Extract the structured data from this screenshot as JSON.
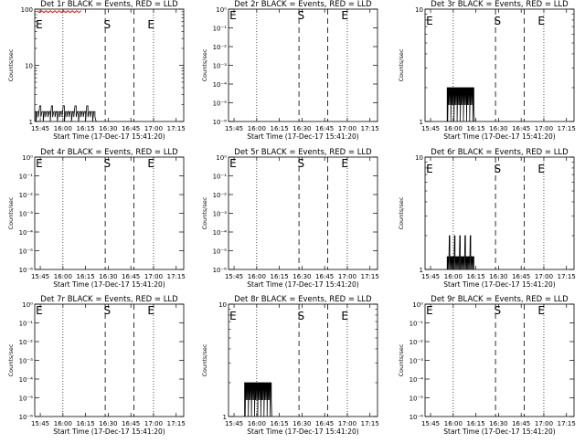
{
  "x_ticks": [
    "15:45",
    "16:00",
    "16:15",
    "16:30",
    "16:45",
    "17:00",
    "17:15"
  ],
  "x_title": "Start Time (17-Dec-17 15:41:20)",
  "y_title": "Counts/sec",
  "colors": {
    "events": "#000000",
    "lld": "#ff0000"
  },
  "chart_data": [
    {
      "type": "line",
      "title": "Det 1r BLACK = Events, RED = LLD",
      "x_range": [
        "15:41:20",
        "17:20"
      ],
      "yscale": "log",
      "ylim": [
        1,
        100
      ],
      "y_ticks": [
        {
          "v": 1,
          "label": "1"
        },
        {
          "v": 10,
          "label": "10"
        },
        {
          "v": 100,
          "label": "100"
        }
      ],
      "dotted_lines": [
        "16:00",
        "17:00"
      ],
      "dashed_lines": [
        "16:28",
        "16:47"
      ],
      "markers": [
        {
          "text": "E",
          "x": "15:42",
          "y": 55
        },
        {
          "text": "S",
          "x": "16:27",
          "y": 55
        },
        {
          "text": "E",
          "x": "16:56",
          "y": 55
        }
      ],
      "events": {
        "x_start": "15:41:30",
        "x_end": "16:22",
        "low": 1.2,
        "high": 1.5,
        "peak": 1.9
      },
      "lld": {
        "x_start": "15:43",
        "x_end": "16:12",
        "y": 92
      }
    },
    {
      "type": "line",
      "title": "Det 2r BLACK = Events, RED = LLD",
      "x_range": [
        "15:41:20",
        "17:20"
      ],
      "yscale": "log",
      "ylim": [
        1e-06,
        1
      ],
      "y_ticks": [
        {
          "v": 1e-06,
          "label": "10⁻⁶"
        },
        {
          "v": 1e-05,
          "label": "10⁻⁵"
        },
        {
          "v": 0.0001,
          "label": "10⁻⁴"
        },
        {
          "v": 0.001,
          "label": "10⁻³"
        },
        {
          "v": 0.01,
          "label": "10⁻²"
        },
        {
          "v": 0.1,
          "label": "10⁻¹"
        },
        {
          "v": 1,
          "label": "10⁰"
        }
      ],
      "dotted_lines": [
        "16:00",
        "17:00"
      ],
      "dashed_lines": [
        "16:28",
        "16:47"
      ],
      "markers": [
        {
          "text": "E",
          "x": "15:42",
          "y": 0.5
        },
        {
          "text": "S",
          "x": "16:27",
          "y": 0.5
        },
        {
          "text": "E",
          "x": "16:56",
          "y": 0.5
        }
      ],
      "events": null,
      "lld": null
    },
    {
      "type": "line",
      "title": "Det 3r BLACK = Events, RED = LLD",
      "x_range": [
        "15:41:20",
        "17:20"
      ],
      "yscale": "log",
      "ylim": [
        1,
        10
      ],
      "y_ticks": [
        {
          "v": 1,
          "label": "1"
        },
        {
          "v": 10,
          "label": "10"
        }
      ],
      "dotted_lines": [
        "16:00",
        "17:00"
      ],
      "dashed_lines": [
        "16:28",
        "16:47"
      ],
      "markers": [
        {
          "text": "E",
          "x": "15:42",
          "y": 8
        },
        {
          "text": "S",
          "x": "16:27",
          "y": 8
        },
        {
          "text": "E",
          "x": "16:56",
          "y": 8
        }
      ],
      "events": {
        "x_start": "15:56",
        "x_end": "16:14",
        "low": 1.4,
        "high": 2,
        "peak": 2
      },
      "lld": null
    },
    {
      "type": "line",
      "title": "Det 4r BLACK = Events, RED = LLD",
      "x_range": [
        "15:41:20",
        "17:20"
      ],
      "yscale": "log",
      "ylim": [
        1e-06,
        1
      ],
      "y_ticks": [
        {
          "v": 1e-06,
          "label": "10⁻⁶"
        },
        {
          "v": 1e-05,
          "label": "10⁻⁵"
        },
        {
          "v": 0.0001,
          "label": "10⁻⁴"
        },
        {
          "v": 0.001,
          "label": "10⁻³"
        },
        {
          "v": 0.01,
          "label": "10⁻²"
        },
        {
          "v": 0.1,
          "label": "10⁻¹"
        },
        {
          "v": 1,
          "label": "10⁰"
        }
      ],
      "dotted_lines": [
        "16:00",
        "17:00"
      ],
      "dashed_lines": [
        "16:28",
        "16:47"
      ],
      "markers": [
        {
          "text": "E",
          "x": "15:42",
          "y": 0.5
        },
        {
          "text": "S",
          "x": "16:27",
          "y": 0.5
        },
        {
          "text": "E",
          "x": "16:56",
          "y": 0.5
        }
      ],
      "events": null,
      "lld": null
    },
    {
      "type": "line",
      "title": "Det 5r BLACK = Events, RED = LLD",
      "x_range": [
        "15:41:20",
        "17:20"
      ],
      "yscale": "log",
      "ylim": [
        1e-06,
        1
      ],
      "y_ticks": [
        {
          "v": 1e-06,
          "label": "10⁻⁶"
        },
        {
          "v": 1e-05,
          "label": "10⁻⁵"
        },
        {
          "v": 0.0001,
          "label": "10⁻⁴"
        },
        {
          "v": 0.001,
          "label": "10⁻³"
        },
        {
          "v": 0.01,
          "label": "10⁻²"
        },
        {
          "v": 0.1,
          "label": "10⁻¹"
        },
        {
          "v": 1,
          "label": "10⁰"
        }
      ],
      "dotted_lines": [
        "16:00",
        "17:00"
      ],
      "dashed_lines": [
        "16:28",
        "16:47"
      ],
      "markers": [
        {
          "text": "E",
          "x": "15:42",
          "y": 0.5
        },
        {
          "text": "S",
          "x": "16:27",
          "y": 0.5
        },
        {
          "text": "E",
          "x": "16:56",
          "y": 0.5
        }
      ],
      "events": null,
      "lld": null
    },
    {
      "type": "line",
      "title": "Det 6r BLACK = Events, RED = LLD",
      "x_range": [
        "15:41:20",
        "17:20"
      ],
      "yscale": "log",
      "ylim": [
        1,
        10
      ],
      "y_ticks": [
        {
          "v": 1,
          "label": "1"
        },
        {
          "v": 10,
          "label": "10"
        }
      ],
      "dotted_lines": [
        "16:00",
        "17:00"
      ],
      "dashed_lines": [
        "16:28",
        "16:47"
      ],
      "markers": [
        {
          "text": "E",
          "x": "15:42",
          "y": 8
        },
        {
          "text": "S",
          "x": "16:27",
          "y": 8
        },
        {
          "text": "E",
          "x": "16:56",
          "y": 8
        }
      ],
      "events": {
        "x_start": "15:56",
        "x_end": "16:14",
        "low": 1,
        "high": 1.3,
        "peak": 2
      },
      "lld": null
    },
    {
      "type": "line",
      "title": "Det 7r BLACK = Events, RED = LLD",
      "x_range": [
        "15:41:20",
        "17:20"
      ],
      "yscale": "log",
      "ylim": [
        1e-06,
        1
      ],
      "y_ticks": [
        {
          "v": 1e-06,
          "label": "10⁻⁶"
        },
        {
          "v": 1e-05,
          "label": "10⁻⁵"
        },
        {
          "v": 0.0001,
          "label": "10⁻⁴"
        },
        {
          "v": 0.001,
          "label": "10⁻³"
        },
        {
          "v": 0.01,
          "label": "10⁻²"
        },
        {
          "v": 0.1,
          "label": "10⁻¹"
        },
        {
          "v": 1,
          "label": "10⁰"
        }
      ],
      "dotted_lines": [
        "16:00",
        "17:00"
      ],
      "dashed_lines": [
        "16:28",
        "16:47"
      ],
      "markers": [
        {
          "text": "E",
          "x": "15:42",
          "y": 0.5
        },
        {
          "text": "S",
          "x": "16:27",
          "y": 0.5
        },
        {
          "text": "E",
          "x": "16:56",
          "y": 0.5
        }
      ],
      "events": null,
      "lld": null
    },
    {
      "type": "line",
      "title": "Det 8r BLACK = Events, RED = LLD",
      "x_range": [
        "15:41:20",
        "17:20"
      ],
      "yscale": "log",
      "ylim": [
        1,
        10
      ],
      "y_ticks": [
        {
          "v": 1,
          "label": "1"
        },
        {
          "v": 10,
          "label": "10"
        }
      ],
      "dotted_lines": [
        "16:00",
        "17:00"
      ],
      "dashed_lines": [
        "16:28",
        "16:47"
      ],
      "markers": [
        {
          "text": "E",
          "x": "15:42",
          "y": 8
        },
        {
          "text": "S",
          "x": "16:27",
          "y": 8
        },
        {
          "text": "E",
          "x": "16:56",
          "y": 8
        }
      ],
      "events": {
        "x_start": "15:52",
        "x_end": "16:10",
        "low": 1.4,
        "high": 2,
        "peak": 2
      },
      "lld": null
    },
    {
      "type": "line",
      "title": "Det 9r BLACK = Events, RED = LLD",
      "x_range": [
        "15:41:20",
        "17:20"
      ],
      "yscale": "log",
      "ylim": [
        1e-06,
        1
      ],
      "y_ticks": [
        {
          "v": 1e-06,
          "label": "10⁻⁶"
        },
        {
          "v": 1e-05,
          "label": "10⁻⁵"
        },
        {
          "v": 0.0001,
          "label": "10⁻⁴"
        },
        {
          "v": 0.001,
          "label": "10⁻³"
        },
        {
          "v": 0.01,
          "label": "10⁻²"
        },
        {
          "v": 0.1,
          "label": "10⁻¹"
        },
        {
          "v": 1,
          "label": "10⁰"
        }
      ],
      "dotted_lines": [
        "16:00",
        "17:00"
      ],
      "dashed_lines": [
        "16:28",
        "16:47"
      ],
      "markers": [
        {
          "text": "E",
          "x": "15:42",
          "y": 0.5
        },
        {
          "text": "S",
          "x": "16:27",
          "y": 0.5
        },
        {
          "text": "E",
          "x": "16:56",
          "y": 0.5
        }
      ],
      "events": null,
      "lld": null
    }
  ]
}
